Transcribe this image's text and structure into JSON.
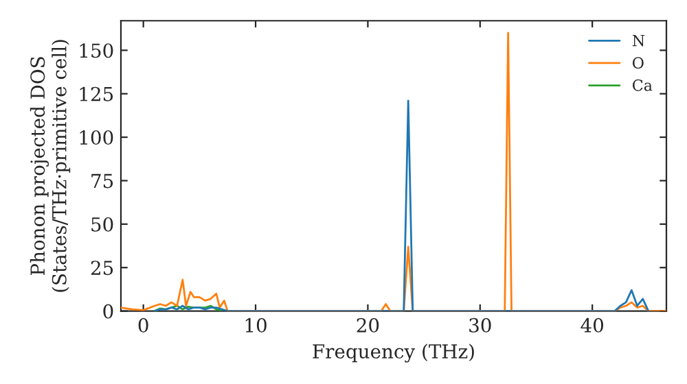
{
  "chart_data": {
    "type": "line",
    "xlabel": "Frequency (THz)",
    "ylabel": "Phonon projected DOS\n(States/THz·primitive cell)",
    "xlim": [
      -2,
      46.6
    ],
    "ylim": [
      0,
      167
    ],
    "xticks": [
      0,
      10,
      20,
      30,
      40
    ],
    "yticks": [
      0,
      25,
      50,
      75,
      100,
      125,
      150
    ],
    "legend": "top right",
    "grid": false,
    "series": [
      {
        "name": "N",
        "color": "#1f77b4",
        "x": [
          1,
          1.5,
          2,
          2.5,
          3,
          3.5,
          4,
          4.5,
          5,
          5.5,
          6,
          6.5,
          7,
          7.5,
          23.2,
          23.6,
          24.0,
          42,
          42.5,
          43,
          43.5,
          44,
          44.5,
          45
        ],
        "values": [
          0,
          1,
          1,
          2,
          1,
          3,
          1,
          2,
          2,
          1,
          2,
          2,
          1,
          0,
          0,
          121,
          0,
          0,
          3,
          5,
          12,
          3,
          7,
          0
        ]
      },
      {
        "name": "O",
        "color": "#ff7f0e",
        "x": [
          -2,
          -1,
          0,
          1,
          1.5,
          2,
          2.5,
          3,
          3.5,
          3.8,
          4.2,
          4.5,
          5,
          5.5,
          6,
          6.5,
          6.8,
          7.2,
          7.5,
          8,
          21.2,
          21.6,
          22,
          23.2,
          23.6,
          24.0,
          32.2,
          32.5,
          32.8,
          42,
          42.5,
          43,
          43.5,
          44,
          44.5,
          45,
          46.6
        ],
        "values": [
          2,
          1,
          0.5,
          3,
          4,
          3,
          5,
          3,
          18,
          3,
          11,
          8,
          8,
          6,
          7,
          10,
          2,
          6,
          0,
          0,
          0,
          4,
          0,
          0,
          37,
          0,
          0,
          160,
          0,
          0,
          2,
          3,
          5,
          2,
          3,
          0,
          0
        ]
      },
      {
        "name": "Ca",
        "color": "#2ca02c",
        "x": [
          1,
          1.5,
          2,
          2.5,
          3,
          3.5,
          4,
          4.5,
          5,
          5.5,
          6,
          6.5,
          7
        ],
        "values": [
          0,
          1.5,
          1,
          2,
          3,
          1,
          2.5,
          2,
          2,
          2,
          3,
          1,
          0
        ]
      }
    ]
  }
}
